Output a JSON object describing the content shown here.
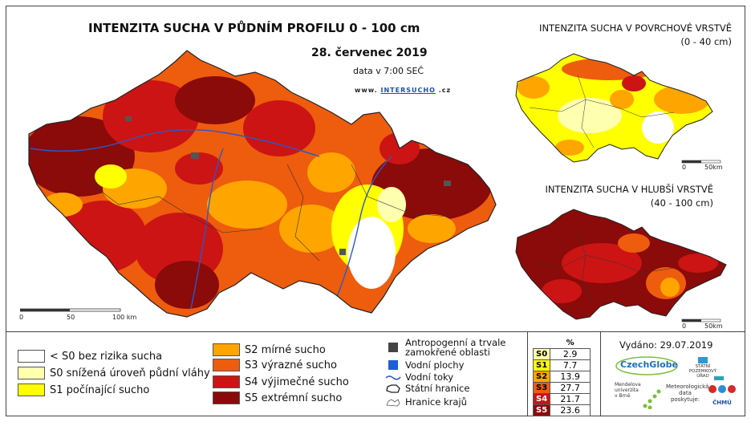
{
  "title": "INTENZITA SUCHA V PŮDNÍM PROFILU 0 - 100 cm",
  "date": "28. červenec 2019",
  "time": "data v 7:00 SEČ",
  "site": {
    "prefix": "www.",
    "brand": "INTERSUCHO",
    "suffix": ".cz"
  },
  "surface_map": {
    "title_line1": "INTENZITA SUCHA V POVRCHOVÉ VRSTVĚ",
    "title_line2": "(0 - 40 cm)"
  },
  "deep_map": {
    "title_line1": "INTENZITA SUCHA V HLUBŠÍ VRSTVĚ",
    "title_line2": "(40 - 100 cm)"
  },
  "main_scale": {
    "labels": [
      "0",
      "50",
      "100 km"
    ]
  },
  "small_scale": {
    "labels": [
      "0",
      "50km"
    ]
  },
  "legend_left": [
    {
      "label": "< S0 bez rizika sucha",
      "color": "#ffffff"
    },
    {
      "label": "S0 snížená úroveň půdní vláhy",
      "color": "#ffffb0"
    },
    {
      "label": "S1 počínající sucho",
      "color": "#ffff00"
    }
  ],
  "legend_mid": [
    {
      "label": "S2 mírné sucho",
      "color": "#ffa500"
    },
    {
      "label": "S3 výrazné sucho",
      "color": "#ee5c0e"
    },
    {
      "label": "S4 výjimečné sucho",
      "color": "#cc1414"
    },
    {
      "label": "S5 extrémní sucho",
      "color": "#8b0a0a"
    }
  ],
  "symbols": [
    {
      "label_line1": "Antropogenní a trvale",
      "label_line2": "zamokřené oblasti",
      "icon": "dark-square-icon"
    },
    {
      "label_line1": "Vodní plochy",
      "label_line2": "",
      "icon": "blue-square-icon"
    },
    {
      "label_line1": "Vodní toky",
      "label_line2": "",
      "icon": "river-line-icon"
    },
    {
      "label_line1": "Státní hranice",
      "label_line2": "",
      "icon": "state-border-icon"
    },
    {
      "label_line1": "Hranice krajů",
      "label_line2": "",
      "icon": "region-border-icon"
    }
  ],
  "percent_table": {
    "header": "%",
    "rows": [
      {
        "cls": "S0",
        "value": "2.9",
        "color": "#ffffb0"
      },
      {
        "cls": "S1",
        "value": "7.7",
        "color": "#ffff00"
      },
      {
        "cls": "S2",
        "value": "13.9",
        "color": "#ffa500"
      },
      {
        "cls": "S3",
        "value": "27.7",
        "color": "#ee5c0e"
      },
      {
        "cls": "S4",
        "value": "21.7",
        "color": "#cc1414"
      },
      {
        "cls": "S5",
        "value": "23.6",
        "color": "#8b0a0a"
      }
    ]
  },
  "issued": "Vydáno: 29.07.2019",
  "logos": {
    "czechglobe": "CzechGlobe",
    "szu": "STÁTNÍ POZEMKOVÝ ÚŘAD",
    "mendel": "Mendelova univerzita v Brně",
    "data_provider": "Meteorologická data poskytuje:",
    "chmu": "ČHMÚ"
  }
}
